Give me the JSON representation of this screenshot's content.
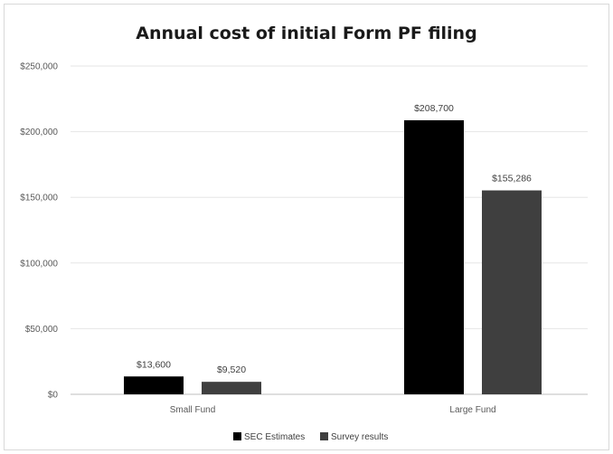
{
  "chart_data": {
    "type": "bar",
    "title": "Annual cost of initial Form PF filing",
    "xlabel": "",
    "ylabel": "",
    "categories": [
      "Small Fund",
      "Large Fund"
    ],
    "series": [
      {
        "name": "SEC Estimates",
        "values": [
          13600,
          208700
        ],
        "labels": [
          "$13,600",
          "$208,700"
        ],
        "color": "#000000"
      },
      {
        "name": "Survey results",
        "values": [
          9520,
          155286
        ],
        "labels": [
          "$9,520",
          "$155,286"
        ],
        "color": "#3f3f3f"
      }
    ],
    "ylim": [
      0,
      250000
    ],
    "yticks": [
      0,
      50000,
      100000,
      150000,
      200000,
      250000
    ],
    "ytick_labels": [
      "$0",
      "$50,000",
      "$100,000",
      "$150,000",
      "$200,000",
      "$250,000"
    ],
    "grid": true,
    "legend_position": "bottom"
  }
}
